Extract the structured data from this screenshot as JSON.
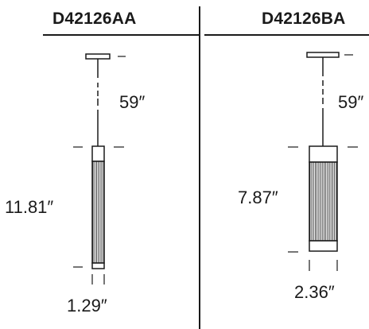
{
  "products": {
    "left": {
      "model": "D42126AA",
      "cable_length": "59″",
      "height": "11.81″",
      "width": "1.29″"
    },
    "right": {
      "model": "D42126BA",
      "cable_length": "59″",
      "height": "7.87″",
      "width": "2.36″"
    }
  },
  "colors": {
    "ink": "#1a1a1a",
    "background": "#ffffff"
  }
}
